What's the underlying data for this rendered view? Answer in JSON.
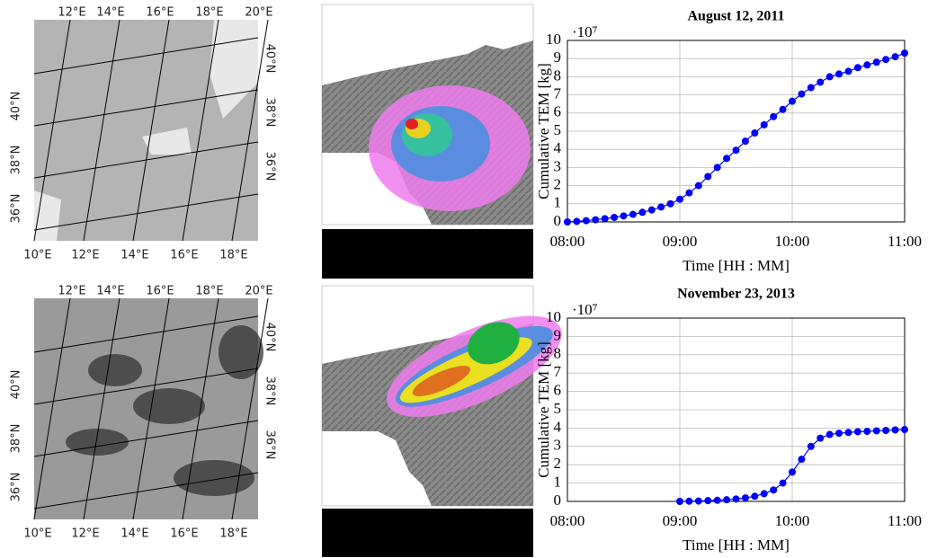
{
  "maps": [
    {
      "top": [
        "12°E",
        "14°E",
        "16°E",
        "18°E",
        "20°E"
      ],
      "bottom": [
        "10°E",
        "12°E",
        "14°E",
        "16°E",
        "18°E"
      ],
      "left": [
        "40°N",
        "38°N",
        "36°N"
      ],
      "right": [
        "40°N",
        "38°N",
        "36°N"
      ]
    },
    {
      "top": [
        "12°E",
        "14°E",
        "16°E",
        "18°E",
        "20°E"
      ],
      "bottom": [
        "10°E",
        "12°E",
        "14°E",
        "16°E",
        "18°E"
      ],
      "left": [
        "40°N",
        "38°N",
        "36°N"
      ],
      "right": [
        "40°N",
        "38°N",
        "36°N"
      ]
    }
  ],
  "chart_data": [
    {
      "type": "line",
      "title": "August 12, 2011",
      "xlabel": "Time [HH : MM]",
      "ylabel": "Cumulative TEM [kg]",
      "y_multiplier": "·10⁷",
      "x": [
        480,
        485,
        490,
        495,
        500,
        505,
        510,
        515,
        520,
        525,
        530,
        535,
        540,
        545,
        550,
        555,
        560,
        565,
        570,
        575,
        580,
        585,
        590,
        595,
        600,
        605,
        610,
        615,
        620,
        625,
        630,
        635,
        640,
        645,
        650,
        655,
        660
      ],
      "values": [
        0,
        0.03,
        0.07,
        0.12,
        0.18,
        0.25,
        0.33,
        0.42,
        0.53,
        0.66,
        0.82,
        1.0,
        1.25,
        1.6,
        2.0,
        2.5,
        3.0,
        3.5,
        3.95,
        4.45,
        4.9,
        5.35,
        5.8,
        6.2,
        6.65,
        7.05,
        7.4,
        7.7,
        8.0,
        8.15,
        8.3,
        8.5,
        8.65,
        8.8,
        8.95,
        9.1,
        9.3
      ],
      "color": "#0000ff",
      "xlim": [
        480,
        660
      ],
      "ylim": [
        0,
        10
      ],
      "xticks": [
        {
          "value": 480,
          "label": "08:00"
        },
        {
          "value": 540,
          "label": "09:00"
        },
        {
          "value": 600,
          "label": "10:00"
        },
        {
          "value": 660,
          "label": "11:00"
        }
      ],
      "yticks": [
        0,
        1,
        2,
        3,
        4,
        5,
        6,
        7,
        8,
        9,
        10
      ],
      "grid": true
    },
    {
      "type": "line",
      "title": "November 23, 2013",
      "xlabel": "Time [HH : MM]",
      "ylabel": "Cumulative TEM [kg]",
      "y_multiplier": "·10⁷",
      "x": [
        540,
        545,
        550,
        555,
        560,
        565,
        570,
        575,
        580,
        585,
        590,
        595,
        600,
        605,
        610,
        615,
        620,
        625,
        630,
        635,
        640,
        645,
        650,
        655,
        660
      ],
      "values": [
        0,
        0.01,
        0.02,
        0.04,
        0.06,
        0.09,
        0.13,
        0.19,
        0.28,
        0.42,
        0.62,
        1.0,
        1.6,
        2.3,
        3.0,
        3.45,
        3.65,
        3.72,
        3.76,
        3.8,
        3.82,
        3.85,
        3.87,
        3.9,
        3.92
      ],
      "color": "#0000ff",
      "xlim": [
        480,
        660
      ],
      "ylim": [
        0,
        10
      ],
      "xticks": [
        {
          "value": 480,
          "label": "08:00"
        },
        {
          "value": 540,
          "label": "09:00"
        },
        {
          "value": 600,
          "label": "10:00"
        },
        {
          "value": 660,
          "label": "11:00"
        }
      ],
      "yticks": [
        0,
        1,
        2,
        3,
        4,
        5,
        6,
        7,
        8,
        9,
        10
      ],
      "grid": true
    }
  ]
}
